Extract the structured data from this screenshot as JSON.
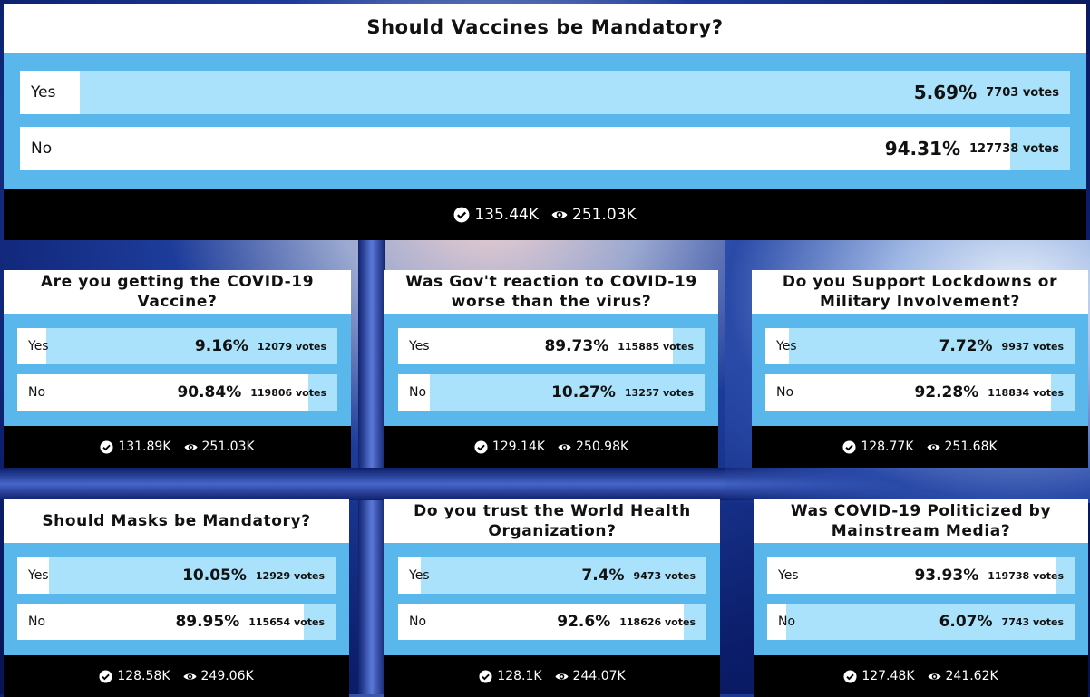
{
  "polls": [
    {
      "title": "Should Vaccines be Mandatory?",
      "options": [
        {
          "label": "Yes",
          "percent": 5.69,
          "percent_label": "5.69%",
          "votes": "7703 votes"
        },
        {
          "label": "No",
          "percent": 94.31,
          "percent_label": "94.31%",
          "votes": "127738 votes"
        }
      ],
      "total_votes": "135.44K",
      "views": "251.03K"
    },
    {
      "title": "Are you getting the COVID-19 Vaccine?",
      "options": [
        {
          "label": "Yes",
          "percent": 9.16,
          "percent_label": "9.16%",
          "votes": "12079 votes"
        },
        {
          "label": "No",
          "percent": 90.84,
          "percent_label": "90.84%",
          "votes": "119806 votes"
        }
      ],
      "total_votes": "131.89K",
      "views": "251.03K"
    },
    {
      "title": "Was Gov't reaction to COVID-19 worse than the virus?",
      "options": [
        {
          "label": "Yes",
          "percent": 89.73,
          "percent_label": "89.73%",
          "votes": "115885 votes"
        },
        {
          "label": "No",
          "percent": 10.27,
          "percent_label": "10.27%",
          "votes": "13257 votes"
        }
      ],
      "total_votes": "129.14K",
      "views": "250.98K"
    },
    {
      "title": "Do you Support Lockdowns or Military Involvement?",
      "options": [
        {
          "label": "Yes",
          "percent": 7.72,
          "percent_label": "7.72%",
          "votes": "9937 votes"
        },
        {
          "label": "No",
          "percent": 92.28,
          "percent_label": "92.28%",
          "votes": "118834 votes"
        }
      ],
      "total_votes": "128.77K",
      "views": "251.68K"
    },
    {
      "title": "Should Masks be Mandatory?",
      "options": [
        {
          "label": "Yes",
          "percent": 10.05,
          "percent_label": "10.05%",
          "votes": "12929 votes"
        },
        {
          "label": "No",
          "percent": 89.95,
          "percent_label": "89.95%",
          "votes": "115654 votes"
        }
      ],
      "total_votes": "128.58K",
      "views": "249.06K"
    },
    {
      "title": "Do you trust the World Health Organization?",
      "options": [
        {
          "label": "Yes",
          "percent": 7.4,
          "percent_label": "7.4%",
          "votes": "9473 votes"
        },
        {
          "label": "No",
          "percent": 92.6,
          "percent_label": "92.6%",
          "votes": "118626 votes"
        }
      ],
      "total_votes": "128.1K",
      "views": "244.07K"
    },
    {
      "title": "Was COVID-19 Politicized by Mainstream Media?",
      "options": [
        {
          "label": "Yes",
          "percent": 93.93,
          "percent_label": "93.93%",
          "votes": "119738 votes"
        },
        {
          "label": "No",
          "percent": 6.07,
          "percent_label": "6.07%",
          "votes": "7743 votes"
        }
      ],
      "total_votes": "127.48K",
      "views": "241.62K"
    }
  ]
}
